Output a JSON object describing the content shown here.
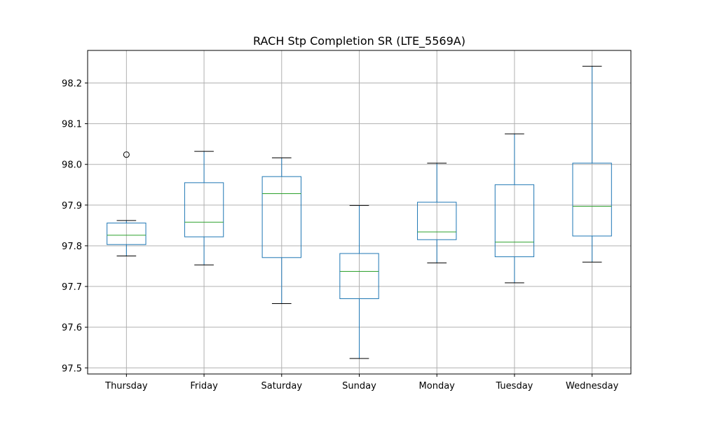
{
  "chart_data": {
    "type": "boxplot",
    "title": "RACH Stp Completion SR (LTE_5569A)",
    "xlabel": "",
    "ylabel": "",
    "ylim": [
      97.485,
      98.28
    ],
    "grid": true,
    "yticks": [
      97.5,
      97.6,
      97.7,
      97.8,
      97.9,
      98.0,
      98.1,
      98.2
    ],
    "ytick_labels": [
      "97.5",
      "97.6",
      "97.7",
      "97.8",
      "97.9",
      "98.0",
      "98.1",
      "98.2"
    ],
    "categories": [
      "Thursday",
      "Friday",
      "Saturday",
      "Sunday",
      "Monday",
      "Tuesday",
      "Wednesday"
    ],
    "boxes": [
      {
        "label": "Thursday",
        "whisker_low": 97.775,
        "q1": 97.803,
        "median": 97.826,
        "q3": 97.856,
        "whisker_high": 97.862,
        "outliers": [
          98.024
        ]
      },
      {
        "label": "Friday",
        "whisker_low": 97.753,
        "q1": 97.822,
        "median": 97.858,
        "q3": 97.955,
        "whisker_high": 98.032,
        "outliers": []
      },
      {
        "label": "Saturday",
        "whisker_low": 97.658,
        "q1": 97.771,
        "median": 97.928,
        "q3": 97.97,
        "whisker_high": 98.016,
        "outliers": []
      },
      {
        "label": "Sunday",
        "whisker_low": 97.523,
        "q1": 97.67,
        "median": 97.737,
        "q3": 97.781,
        "whisker_high": 97.899,
        "outliers": []
      },
      {
        "label": "Monday",
        "whisker_low": 97.758,
        "q1": 97.815,
        "median": 97.834,
        "q3": 97.907,
        "whisker_high": 98.003,
        "outliers": []
      },
      {
        "label": "Tuesday",
        "whisker_low": 97.709,
        "q1": 97.773,
        "median": 97.809,
        "q3": 97.95,
        "whisker_high": 98.075,
        "outliers": []
      },
      {
        "label": "Wednesday",
        "whisker_low": 97.76,
        "q1": 97.824,
        "median": 97.897,
        "q3": 98.003,
        "whisker_high": 98.241,
        "outliers": []
      }
    ],
    "colors": {
      "box": "#1f77b4",
      "median": "#2ca02c",
      "whisker_cap": "#000000",
      "grid": "#b0b0b0",
      "axes": "#000000"
    }
  }
}
